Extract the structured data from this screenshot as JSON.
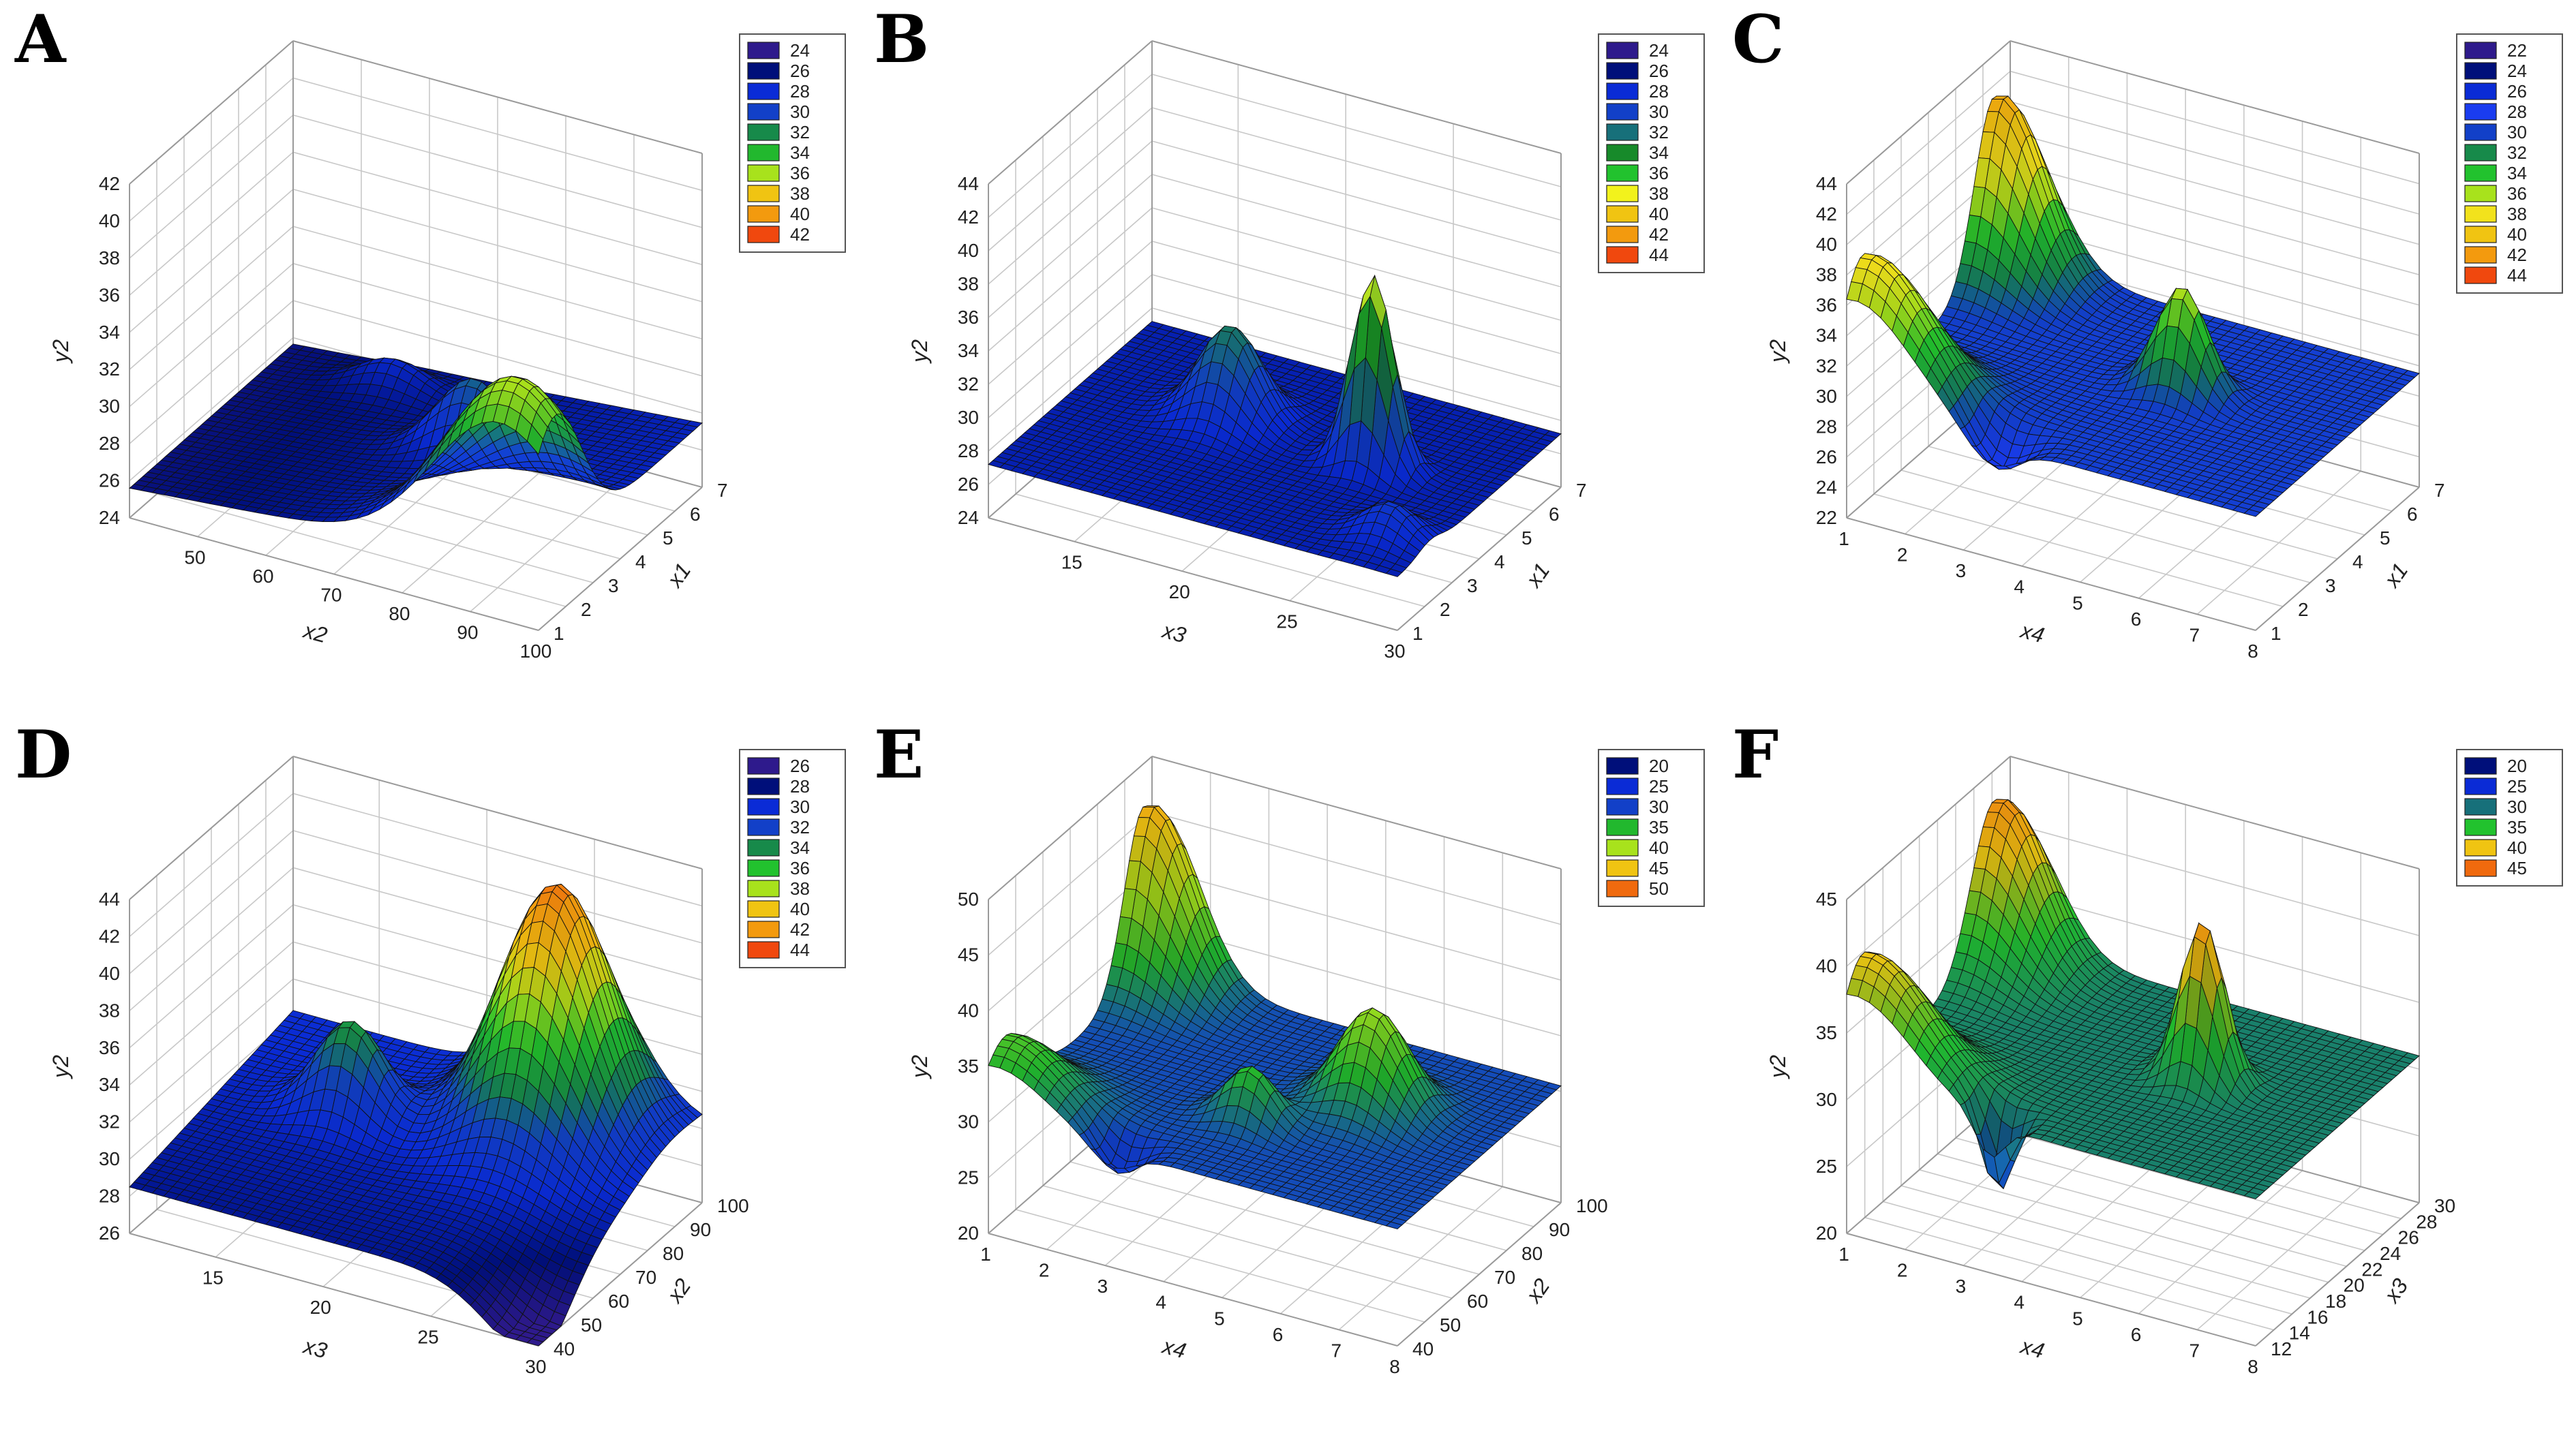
{
  "figure": {
    "panel_count": 6
  },
  "chart_data": [
    {
      "panel": "A",
      "type": "surface3d",
      "xlabel": "x2",
      "ylabel": "x1",
      "zlabel": "y2",
      "xlim": [
        40,
        100
      ],
      "ylim": [
        1,
        7
      ],
      "zlim": [
        24,
        42
      ],
      "xticks": [
        50,
        60,
        70,
        80,
        90,
        100
      ],
      "yticks": [
        1,
        2,
        3,
        4,
        5,
        6,
        7
      ],
      "zticks": [
        24,
        26,
        28,
        30,
        32,
        34,
        36,
        38,
        40,
        42
      ],
      "legend": {
        "placement": "right",
        "levels": [
          24,
          26,
          28,
          30,
          32,
          34,
          36,
          38,
          40,
          42
        ],
        "colors": [
          "#2e1a8c",
          "#000f7a",
          "#0a2bd6",
          "#1240c8",
          "#178a4a",
          "#22b82e",
          "#a8e21c",
          "#f0c412",
          "#f39a0e",
          "#f0480e"
        ]
      },
      "surface": {
        "grid": 37,
        "base": 25.6,
        "terms": [
          [
            9,
            0.9,
            0.1,
            0.16,
            0.16
          ],
          [
            4.2,
            0.62,
            0.55,
            0.09,
            0.07
          ],
          [
            1.6,
            0.3,
            0.85,
            0.08,
            0.06
          ]
        ],
        "sx": 0.03,
        "sy": 0.01
      }
    },
    {
      "panel": "B",
      "type": "surface3d",
      "xlabel": "x3",
      "ylabel": "x1",
      "zlabel": "y2",
      "xlim": [
        11,
        30
      ],
      "ylim": [
        1,
        7
      ],
      "zlim": [
        24,
        44
      ],
      "xticks": [
        15,
        20,
        25,
        30
      ],
      "yticks": [
        1,
        2,
        3,
        4,
        5,
        6,
        7
      ],
      "zticks": [
        24,
        26,
        28,
        30,
        32,
        34,
        36,
        38,
        40,
        42,
        44
      ],
      "legend": {
        "placement": "right",
        "levels": [
          24,
          26,
          28,
          30,
          32,
          34,
          36,
          38,
          40,
          42,
          44
        ],
        "colors": [
          "#2e1a8c",
          "#000f7a",
          "#0a2bd6",
          "#1240c8",
          "#17707a",
          "#178a2a",
          "#22c22e",
          "#f2f21c",
          "#f0c412",
          "#f39a0e",
          "#f0480e"
        ]
      },
      "surface": {
        "grid": 37,
        "base": 27.2,
        "terms": [
          [
            5.5,
            0.35,
            0.6,
            0.07,
            0.09
          ],
          [
            11.5,
            0.72,
            0.55,
            0.05,
            0.05
          ],
          [
            2,
            0.9,
            0.2,
            0.06,
            0.07
          ]
        ],
        "sx": 0.0,
        "sy": 0.0
      }
    },
    {
      "panel": "C",
      "type": "surface3d",
      "xlabel": "x4",
      "ylabel": "x1",
      "zlabel": "y2",
      "xlim": [
        1,
        8
      ],
      "ylim": [
        1,
        7
      ],
      "zlim": [
        22,
        44
      ],
      "xticks": [
        1,
        2,
        3,
        4,
        5,
        6,
        7,
        8
      ],
      "yticks": [
        1,
        2,
        3,
        4,
        5,
        6,
        7
      ],
      "zticks": [
        22,
        24,
        26,
        28,
        30,
        32,
        34,
        36,
        38,
        40,
        42,
        44
      ],
      "legend": {
        "placement": "right",
        "levels": [
          22,
          24,
          26,
          28,
          30,
          32,
          34,
          36,
          38,
          40,
          42,
          44
        ],
        "colors": [
          "#2e1a8c",
          "#000f7a",
          "#0a2bd6",
          "#1a3cf0",
          "#1240c8",
          "#178a4a",
          "#22c22e",
          "#a8e21c",
          "#f2e21c",
          "#f0c412",
          "#f39a0e",
          "#f0480e"
        ]
      },
      "surface": {
        "grid": 37,
        "base": 29.5,
        "terms": [
          [
            12,
            0.02,
            0.9,
            0.1,
            0.12
          ],
          [
            9,
            0.02,
            0.1,
            0.14,
            0.14
          ],
          [
            7,
            0.6,
            0.55,
            0.06,
            0.06
          ],
          [
            -2.5,
            0.35,
            0.05,
            0.06,
            0.06
          ]
        ],
        "sx": 0.0,
        "sy": 0.0
      }
    },
    {
      "panel": "D",
      "type": "surface3d",
      "xlabel": "x3",
      "ylabel": "x2",
      "zlabel": "y2",
      "xlim": [
        11,
        30
      ],
      "ylim": [
        40,
        100
      ],
      "zlim": [
        26,
        44
      ],
      "xticks": [
        15,
        20,
        25,
        30
      ],
      "yticks": [
        40,
        50,
        60,
        70,
        80,
        90,
        100
      ],
      "zticks": [
        26,
        28,
        30,
        32,
        34,
        36,
        38,
        40,
        42,
        44
      ],
      "legend": {
        "placement": "right",
        "levels": [
          26,
          28,
          30,
          32,
          34,
          36,
          38,
          40,
          42,
          44
        ],
        "colors": [
          "#2e1a8c",
          "#000f7a",
          "#0a2bd6",
          "#1240c8",
          "#178a4a",
          "#22c22e",
          "#a8e21c",
          "#f0c412",
          "#f39a0e",
          "#f0480e"
        ]
      },
      "surface": {
        "grid": 37,
        "base": 28.5,
        "terms": [
          [
            13,
            0.72,
            0.8,
            0.12,
            0.18
          ],
          [
            5,
            0.3,
            0.6,
            0.08,
            0.08
          ],
          [
            -3.5,
            1.0,
            0.0,
            0.12,
            0.2
          ]
        ],
        "sx": 0.0,
        "sy": 0.03
      }
    },
    {
      "panel": "E",
      "type": "surface3d",
      "xlabel": "x4",
      "ylabel": "x2",
      "zlabel": "y2",
      "xlim": [
        1,
        8
      ],
      "ylim": [
        40,
        100
      ],
      "zlim": [
        20,
        50
      ],
      "xticks": [
        1,
        2,
        3,
        4,
        5,
        6,
        7,
        8
      ],
      "yticks": [
        40,
        50,
        60,
        70,
        80,
        90,
        100
      ],
      "zticks": [
        20,
        25,
        30,
        35,
        40,
        45,
        50
      ],
      "legend": {
        "placement": "right",
        "levels": [
          20,
          25,
          30,
          35,
          40,
          45,
          50
        ],
        "colors": [
          "#000f7a",
          "#0a2bd6",
          "#1240c8",
          "#22b82e",
          "#a8e21c",
          "#f0c412",
          "#f06a0e"
        ]
      },
      "surface": {
        "grid": 37,
        "base": 30.5,
        "terms": [
          [
            16,
            0.02,
            0.95,
            0.1,
            0.12
          ],
          [
            6,
            0.02,
            0.1,
            0.12,
            0.14
          ],
          [
            9,
            0.7,
            0.6,
            0.08,
            0.1
          ],
          [
            5,
            0.5,
            0.35,
            0.06,
            0.06
          ],
          [
            -3,
            0.3,
            0.05,
            0.05,
            0.05
          ]
        ],
        "sx": 0.0,
        "sy": 0.0
      }
    },
    {
      "panel": "F",
      "type": "surface3d",
      "xlabel": "x4",
      "ylabel": "x3",
      "zlabel": "y2",
      "xlim": [
        1,
        8
      ],
      "ylim": [
        12,
        30
      ],
      "zlim": [
        20,
        45
      ],
      "xticks": [
        1,
        2,
        3,
        4,
        5,
        6,
        7,
        8
      ],
      "yticks": [
        12,
        14,
        16,
        18,
        20,
        22,
        24,
        26,
        28,
        30
      ],
      "zticks": [
        20,
        25,
        30,
        35,
        40,
        45
      ],
      "legend": {
        "placement": "right",
        "levels": [
          20,
          25,
          30,
          35,
          40,
          45
        ],
        "colors": [
          "#000f7a",
          "#0a2bd6",
          "#17707a",
          "#22c22e",
          "#f0c412",
          "#f06a0e"
        ]
      },
      "surface": {
        "grid": 37,
        "base": 31,
        "terms": [
          [
            12,
            0.02,
            0.9,
            0.1,
            0.14
          ],
          [
            9,
            0.02,
            0.1,
            0.14,
            0.14
          ],
          [
            12,
            0.65,
            0.55,
            0.05,
            0.06
          ],
          [
            -6,
            0.35,
            0.05,
            0.035,
            0.04
          ]
        ],
        "sx": 0.0,
        "sy": 0.0
      }
    }
  ]
}
